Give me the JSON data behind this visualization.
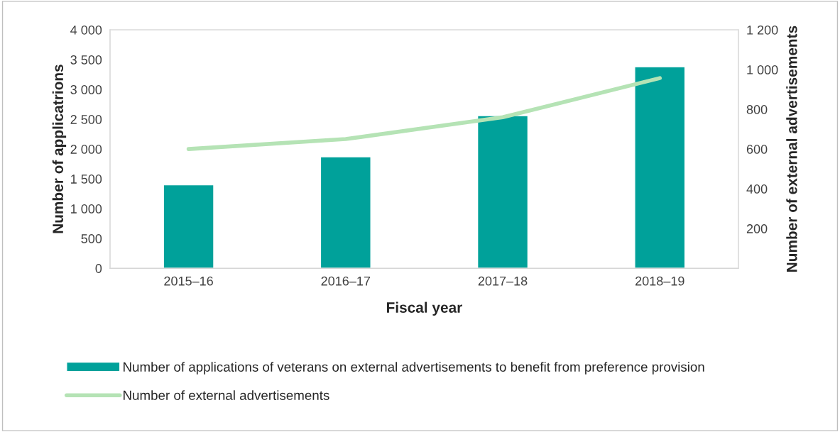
{
  "chart_data": {
    "type": "bar",
    "xlabel": "Fiscal year",
    "ylabel": "Number of applicatrions",
    "y2label": "Number of external advertisements",
    "categories": [
      "2015–16",
      "2016–17",
      "2017–18",
      "2018–19"
    ],
    "series": [
      {
        "name": "Number of applications of veterans on external advertisements to benefit from preference provision",
        "color": "#00a19a",
        "values": [
          1400,
          1870,
          2560,
          3380
        ]
      },
      {
        "name": "Number of external advertisements",
        "type": "line",
        "axis": "y2",
        "color": "#b5e3b5",
        "values": [
          600,
          650,
          760,
          957
        ]
      }
    ],
    "ylim": [
      0,
      4000
    ],
    "yticks": [
      0,
      500,
      {
        "value": 1000,
        "label": "1 000"
      },
      {
        "value": 1500,
        "label": "1 500"
      },
      {
        "value": 2000,
        "label": "2 000"
      },
      {
        "value": 2500,
        "label": "2 500"
      },
      {
        "value": 3000,
        "label": "3 000"
      },
      {
        "value": 3500,
        "label": "3 500"
      },
      {
        "value": 4000,
        "label": "4 000"
      }
    ],
    "y2lim": [
      0,
      1200
    ],
    "y2ticks": [
      200,
      400,
      600,
      800,
      {
        "value": 1000,
        "label": "1 000"
      },
      {
        "value": 1200,
        "label": "1 200"
      }
    ],
    "grid": false,
    "legend": "bottom",
    "marker": "none",
    "line_style": "solid"
  }
}
